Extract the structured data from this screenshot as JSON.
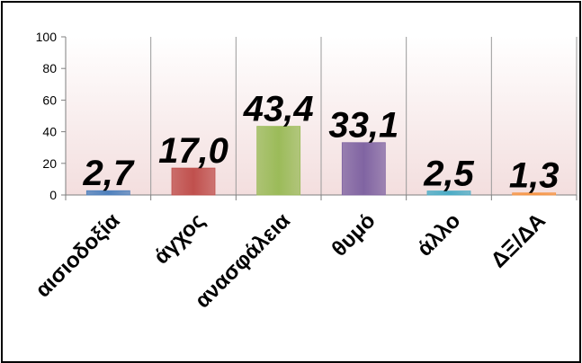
{
  "chart_data": {
    "type": "bar",
    "categories": [
      "αισιοδοξία",
      "άγχος",
      "ανασφάλεια",
      "θυμό",
      "άλλο",
      "ΔΞ/ΔΑ"
    ],
    "values": [
      2.7,
      17.0,
      43.4,
      33.1,
      2.5,
      1.3
    ],
    "data_labels": [
      "2,7",
      "17,0",
      "43,4",
      "33,1",
      "2,5",
      "1,3"
    ],
    "y_ticks": [
      0,
      20,
      40,
      60,
      80,
      100
    ],
    "ylim": [
      0,
      100
    ],
    "title": "",
    "xlabel": "",
    "ylabel": "",
    "grid": "vertical lines between categories",
    "legend": "none",
    "colors": {
      "plot_background": "#f6e6e6",
      "bars": [
        "#4f81bd",
        "#c0504d",
        "#9bbb59",
        "#8064a2",
        "#4bacc6",
        "#f79646"
      ],
      "gridline": "#9a9a9a"
    }
  }
}
